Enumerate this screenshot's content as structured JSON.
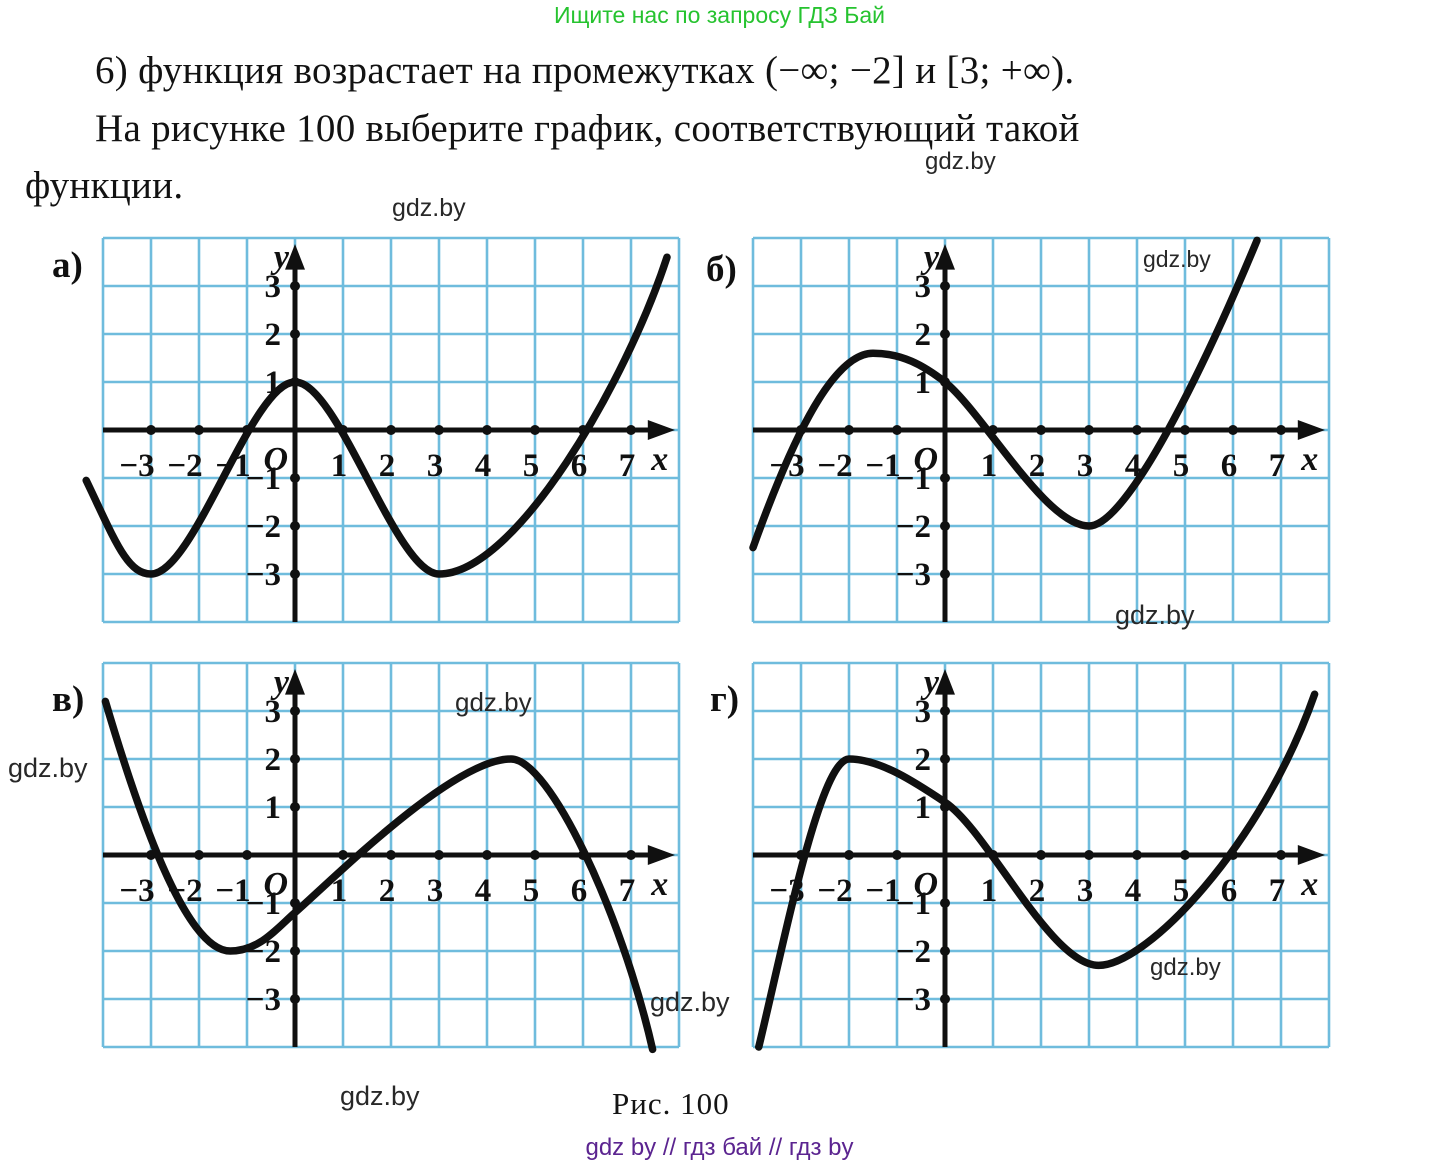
{
  "page": {
    "promo": "Ищите нас по запросу ГДЗ Бай",
    "problem_lines": [
      "6) функция возрастает на промежутках (−∞; −2] и [3; +∞).",
      "На рисунке 100 выберите график, соответствующий такой",
      "функции."
    ],
    "caption": "Рис. 100",
    "footer": "gdz by  //  гдз бай  //  гдз by",
    "watermark_text": "gdz.by"
  },
  "colors": {
    "grid": "#6fbcdd",
    "ink": "#101010",
    "promo_green": "#26c32f",
    "footer_purple": "#5b2490",
    "watermark_gray": "#282828"
  },
  "axes": {
    "cols": 12,
    "rows": 8,
    "cell": 48,
    "origin_col": 4,
    "origin_row": 4,
    "x_label": "x",
    "y_label": "y",
    "origin_label": "O",
    "x_ticks": [
      {
        "v": -3,
        "label": "−3"
      },
      {
        "v": -2,
        "label": "−2"
      },
      {
        "v": -1,
        "label": "−1"
      },
      {
        "v": 1,
        "label": "1"
      },
      {
        "v": 2,
        "label": "2"
      },
      {
        "v": 3,
        "label": "3"
      },
      {
        "v": 4,
        "label": "4"
      },
      {
        "v": 5,
        "label": "5"
      },
      {
        "v": 6,
        "label": "6"
      },
      {
        "v": 7,
        "label": "7"
      }
    ],
    "y_ticks": [
      {
        "v": 3,
        "label": "3"
      },
      {
        "v": 2,
        "label": "2"
      },
      {
        "v": 1,
        "label": "1"
      },
      {
        "v": -1,
        "label": "−1"
      },
      {
        "v": -2,
        "label": "−2"
      },
      {
        "v": -3,
        "label": "−3"
      }
    ]
  },
  "chart_data": [
    {
      "id": "a",
      "label": "а)",
      "type": "line",
      "x_range": [
        -4,
        8
      ],
      "y_range": [
        -4,
        4
      ],
      "grid": true,
      "local_max": [
        [
          0,
          1
        ]
      ],
      "local_min": [
        [
          -3,
          -3
        ],
        [
          3,
          -3
        ]
      ],
      "x_intercepts_approx": [
        -1.2,
        1.2,
        6
      ],
      "y_intercept": 1,
      "curve": {
        "start": [
          -4.35,
          -1.05
        ],
        "segments": [
          {
            "c1": [
              -3.75,
              -2.3
            ],
            "c2": [
              -3.5,
              -3
            ],
            "to": [
              -3,
              -3
            ]
          },
          {
            "c1": [
              -2.1,
              -3
            ],
            "c2": [
              -0.9,
              1
            ],
            "to": [
              0,
              1
            ]
          },
          {
            "c1": [
              0.9,
              1
            ],
            "c2": [
              2.1,
              -3
            ],
            "to": [
              3,
              -3
            ]
          },
          {
            "c1": [
              4.6,
              -3
            ],
            "c2": [
              6.9,
              1.0
            ],
            "to": [
              7.75,
              3.6
            ]
          }
        ]
      }
    },
    {
      "id": "b",
      "label": "б)",
      "type": "line",
      "x_range": [
        -4,
        8
      ],
      "y_range": [
        -4,
        4
      ],
      "grid": true,
      "local_max": [
        [
          -1.5,
          1.6
        ]
      ],
      "local_min": [
        [
          3,
          -2
        ]
      ],
      "x_intercepts_approx": [
        -2.9,
        1.1,
        4.5
      ],
      "y_intercept": 1,
      "curve": {
        "start": [
          -4.0,
          -2.45
        ],
        "segments": [
          {
            "c1": [
              -3.3,
              -0.5
            ],
            "c2": [
              -2.4,
              1.6
            ],
            "to": [
              -1.5,
              1.6
            ]
          },
          {
            "c1": [
              -0.9,
              1.6
            ],
            "c2": [
              -0.45,
              1.35
            ],
            "to": [
              0,
              1
            ]
          },
          {
            "c1": [
              0.8,
              0.35
            ],
            "c2": [
              2.1,
              -2
            ],
            "to": [
              3,
              -2
            ]
          },
          {
            "c1": [
              3.8,
              -2
            ],
            "c2": [
              5.4,
              1.3
            ],
            "to": [
              6.5,
              3.95
            ]
          }
        ]
      }
    },
    {
      "id": "v",
      "label": "в)",
      "type": "line",
      "x_range": [
        -4,
        8
      ],
      "y_range": [
        -4,
        4
      ],
      "grid": true,
      "local_max": [
        [
          4.5,
          2
        ]
      ],
      "local_min": [
        [
          -1.4,
          -2
        ]
      ],
      "x_intercepts_approx": [
        -2.8,
        1,
        6.1
      ],
      "y_intercept": -1.2,
      "curve": {
        "start": [
          -3.95,
          3.2
        ],
        "segments": [
          {
            "c1": [
              -3.3,
              1.0
            ],
            "c2": [
              -2.3,
              -2
            ],
            "to": [
              -1.35,
              -2
            ]
          },
          {
            "c1": [
              -0.75,
              -2
            ],
            "c2": [
              -0.4,
              -1.55
            ],
            "to": [
              0,
              -1.2
            ]
          },
          {
            "c1": [
              0.85,
              -0.45
            ],
            "c2": [
              3.3,
              2
            ],
            "to": [
              4.5,
              2
            ]
          },
          {
            "c1": [
              5.3,
              2
            ],
            "c2": [
              6.8,
              -1.2
            ],
            "to": [
              7.45,
              -4.05
            ]
          }
        ]
      }
    },
    {
      "id": "g",
      "label": "г)",
      "type": "line",
      "x_range": [
        -4,
        8
      ],
      "y_range": [
        -4,
        4
      ],
      "grid": true,
      "local_max": [
        [
          -2,
          2
        ]
      ],
      "local_min": [
        [
          3.2,
          -2.3
        ]
      ],
      "x_intercepts_approx": [
        -3,
        1.1,
        6
      ],
      "y_intercept": 1.1,
      "curve": {
        "start": [
          -3.88,
          -4.0
        ],
        "segments": [
          {
            "c1": [
              -3.35,
              -1.8
            ],
            "c2": [
              -2.6,
              2
            ],
            "to": [
              -2,
              2
            ]
          },
          {
            "c1": [
              -1.35,
              2
            ],
            "c2": [
              -0.6,
              1.5
            ],
            "to": [
              0,
              1.1
            ]
          },
          {
            "c1": [
              0.9,
              0.5
            ],
            "c2": [
              2.2,
              -2.3
            ],
            "to": [
              3.2,
              -2.3
            ]
          },
          {
            "c1": [
              4.2,
              -2.3
            ],
            "c2": [
              6.6,
              0.2
            ],
            "to": [
              7.7,
              3.35
            ]
          }
        ]
      }
    }
  ]
}
